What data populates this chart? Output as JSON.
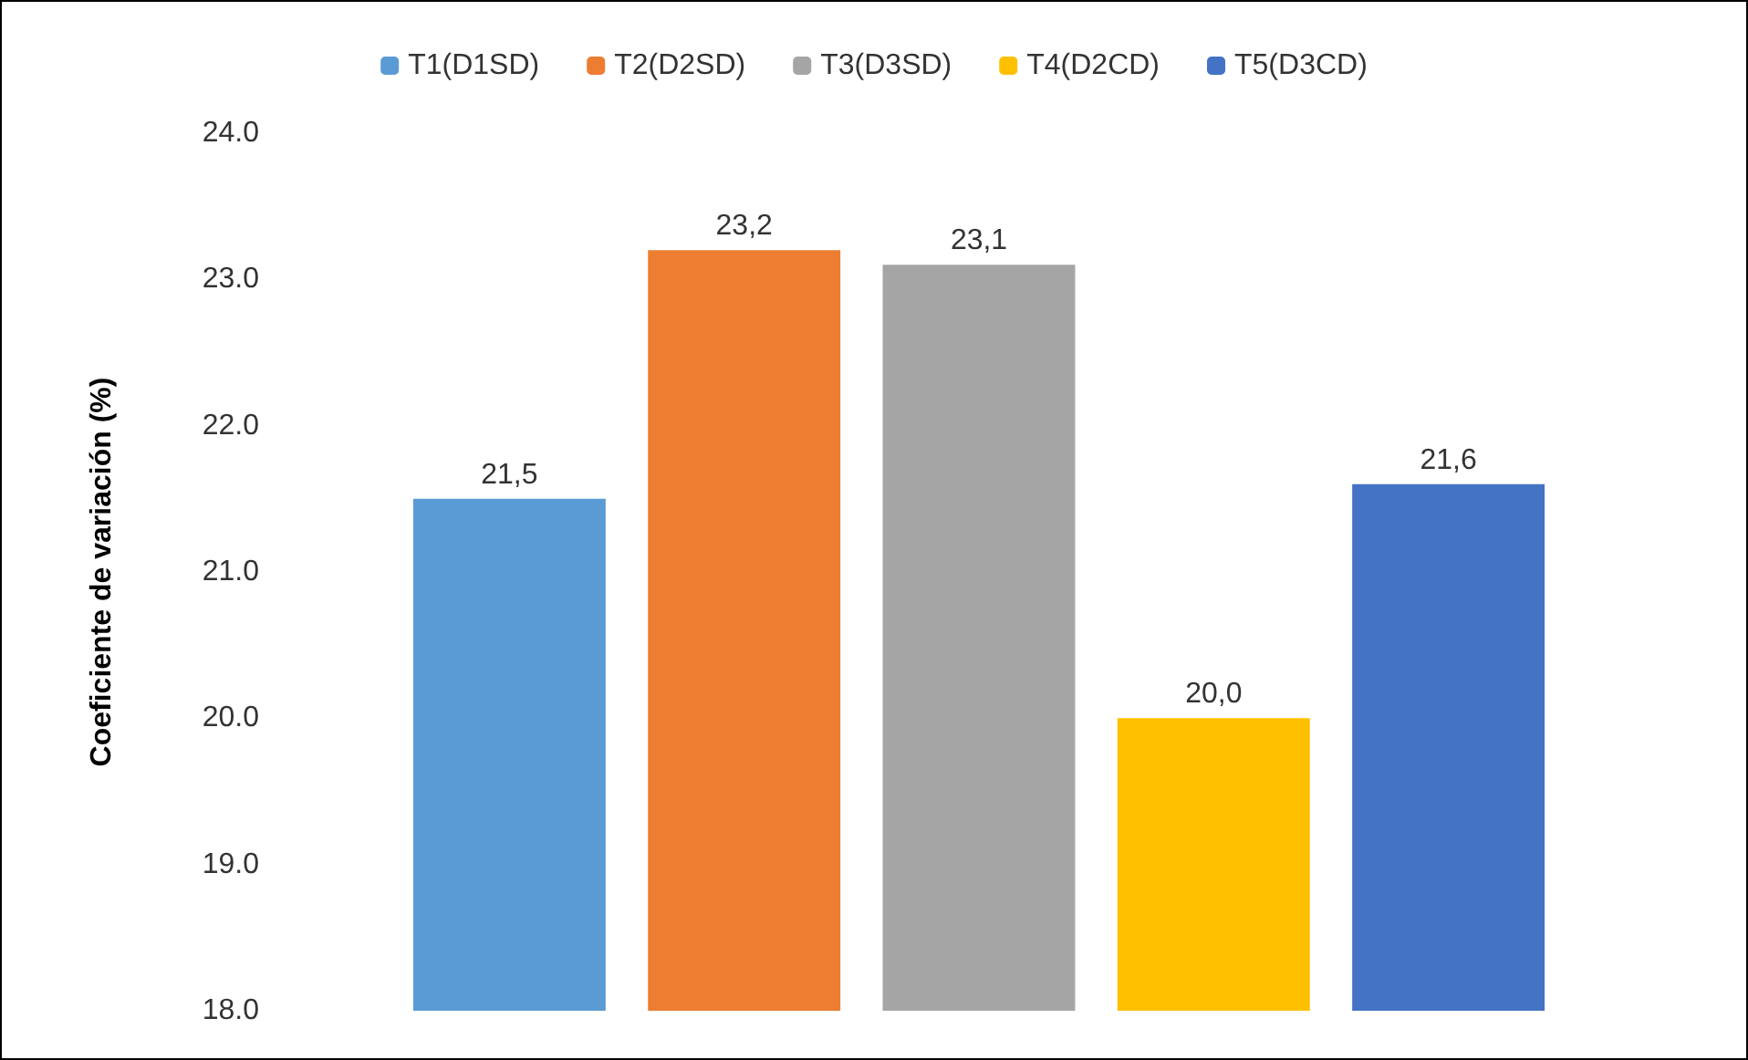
{
  "chart_data": {
    "type": "bar",
    "ylabel": "Coeficiente de variación (%)",
    "categories": [
      null
    ],
    "series": [
      {
        "name": "T1(D1SD)",
        "color": "#5b9bd5",
        "values": [
          21.5
        ],
        "value_labels": [
          "21,5"
        ]
      },
      {
        "name": "T2(D2SD)",
        "color": "#ed7d31",
        "values": [
          23.2
        ],
        "value_labels": [
          "23,2"
        ]
      },
      {
        "name": "T3(D3SD)",
        "color": "#a5a5a5",
        "values": [
          23.1
        ],
        "value_labels": [
          "23,1"
        ]
      },
      {
        "name": "T4(D2CD)",
        "color": "#ffc000",
        "values": [
          20.0
        ],
        "value_labels": [
          "20,0"
        ]
      },
      {
        "name": "T5(D3CD)",
        "color": "#4472c4",
        "values": [
          21.6
        ],
        "value_labels": [
          "21,6"
        ]
      }
    ],
    "ylim": [
      18,
      24
    ],
    "yticks": [
      {
        "value": 18,
        "label": "18.0"
      },
      {
        "value": 19,
        "label": "19.0"
      },
      {
        "value": 20,
        "label": "20.0"
      },
      {
        "value": 21,
        "label": "21.0"
      },
      {
        "value": 22,
        "label": "22.0"
      },
      {
        "value": 23,
        "label": "23.0"
      },
      {
        "value": 24,
        "label": "24.0"
      }
    ],
    "grid": false,
    "legend": "top"
  }
}
